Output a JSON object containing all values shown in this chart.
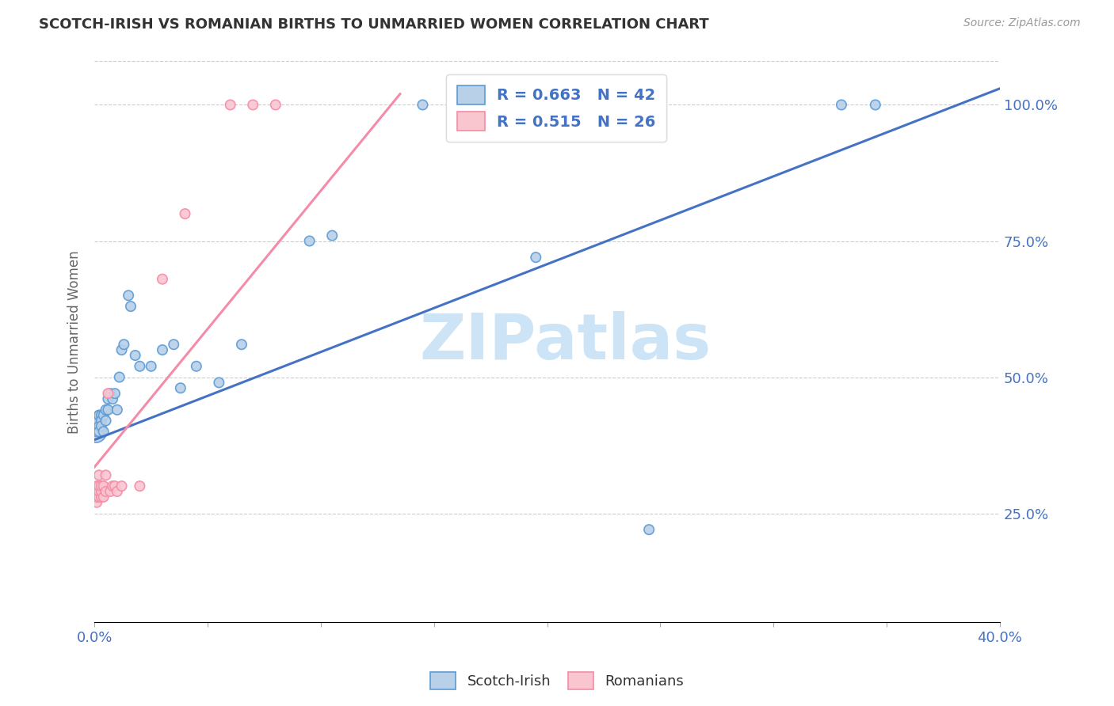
{
  "title": "SCOTCH-IRISH VS ROMANIAN BIRTHS TO UNMARRIED WOMEN CORRELATION CHART",
  "source": "Source: ZipAtlas.com",
  "ylabel": "Births to Unmarried Women",
  "xlim": [
    0.0,
    0.4
  ],
  "ylim": [
    0.05,
    1.08
  ],
  "xtick_positions": [
    0.0,
    0.05,
    0.1,
    0.15,
    0.2,
    0.25,
    0.3,
    0.35,
    0.4
  ],
  "ytick_positions": [
    0.25,
    0.5,
    0.75,
    1.0
  ],
  "ytick_labels": [
    "25.0%",
    "50.0%",
    "75.0%",
    "100.0%"
  ],
  "blue_R": 0.663,
  "blue_N": 42,
  "pink_R": 0.515,
  "pink_N": 26,
  "blue_scatter_color": "#b8d0e8",
  "blue_edge_color": "#5b9bd5",
  "pink_scatter_color": "#f9c6d0",
  "pink_edge_color": "#f48ca8",
  "blue_line_color": "#4472c4",
  "pink_line_color": "#f48ca8",
  "watermark_color": "#cce4f5",
  "blue_line_x": [
    0.0,
    0.4
  ],
  "blue_line_y": [
    0.385,
    1.03
  ],
  "pink_line_x": [
    0.0,
    0.135
  ],
  "pink_line_y": [
    0.335,
    1.02
  ],
  "si_x": [
    0.0005,
    0.001,
    0.001,
    0.002,
    0.002,
    0.002,
    0.002,
    0.003,
    0.003,
    0.003,
    0.004,
    0.004,
    0.005,
    0.005,
    0.006,
    0.006,
    0.007,
    0.008,
    0.009,
    0.01,
    0.011,
    0.012,
    0.013,
    0.015,
    0.016,
    0.018,
    0.02,
    0.025,
    0.03,
    0.035,
    0.038,
    0.045,
    0.055,
    0.065,
    0.095,
    0.105,
    0.145,
    0.165,
    0.195,
    0.245,
    0.33,
    0.345
  ],
  "si_y": [
    0.4,
    0.42,
    0.4,
    0.43,
    0.41,
    0.43,
    0.4,
    0.43,
    0.42,
    0.41,
    0.43,
    0.4,
    0.44,
    0.42,
    0.46,
    0.44,
    0.47,
    0.46,
    0.47,
    0.44,
    0.5,
    0.55,
    0.56,
    0.65,
    0.63,
    0.54,
    0.52,
    0.52,
    0.55,
    0.56,
    0.48,
    0.52,
    0.49,
    0.56,
    0.75,
    0.76,
    1.0,
    1.0,
    0.72,
    0.22,
    1.0,
    1.0
  ],
  "si_sizes": [
    400,
    80,
    80,
    80,
    80,
    80,
    80,
    80,
    80,
    80,
    80,
    80,
    80,
    80,
    80,
    80,
    80,
    80,
    80,
    80,
    80,
    80,
    80,
    80,
    80,
    80,
    80,
    80,
    80,
    80,
    80,
    80,
    80,
    80,
    80,
    80,
    80,
    80,
    80,
    80,
    80,
    80
  ],
  "ro_x": [
    0.001,
    0.001,
    0.001,
    0.002,
    0.002,
    0.002,
    0.002,
    0.003,
    0.003,
    0.003,
    0.004,
    0.004,
    0.005,
    0.005,
    0.006,
    0.007,
    0.008,
    0.009,
    0.01,
    0.012,
    0.02,
    0.03,
    0.04,
    0.06,
    0.07,
    0.08
  ],
  "ro_y": [
    0.27,
    0.28,
    0.3,
    0.28,
    0.29,
    0.3,
    0.32,
    0.28,
    0.29,
    0.3,
    0.28,
    0.3,
    0.29,
    0.32,
    0.47,
    0.29,
    0.3,
    0.3,
    0.29,
    0.3,
    0.3,
    0.68,
    0.8,
    1.0,
    1.0,
    1.0
  ],
  "ro_sizes": [
    80,
    80,
    80,
    80,
    80,
    80,
    80,
    80,
    80,
    80,
    80,
    80,
    80,
    80,
    80,
    80,
    80,
    80,
    80,
    80,
    80,
    80,
    80,
    80,
    80,
    80
  ]
}
